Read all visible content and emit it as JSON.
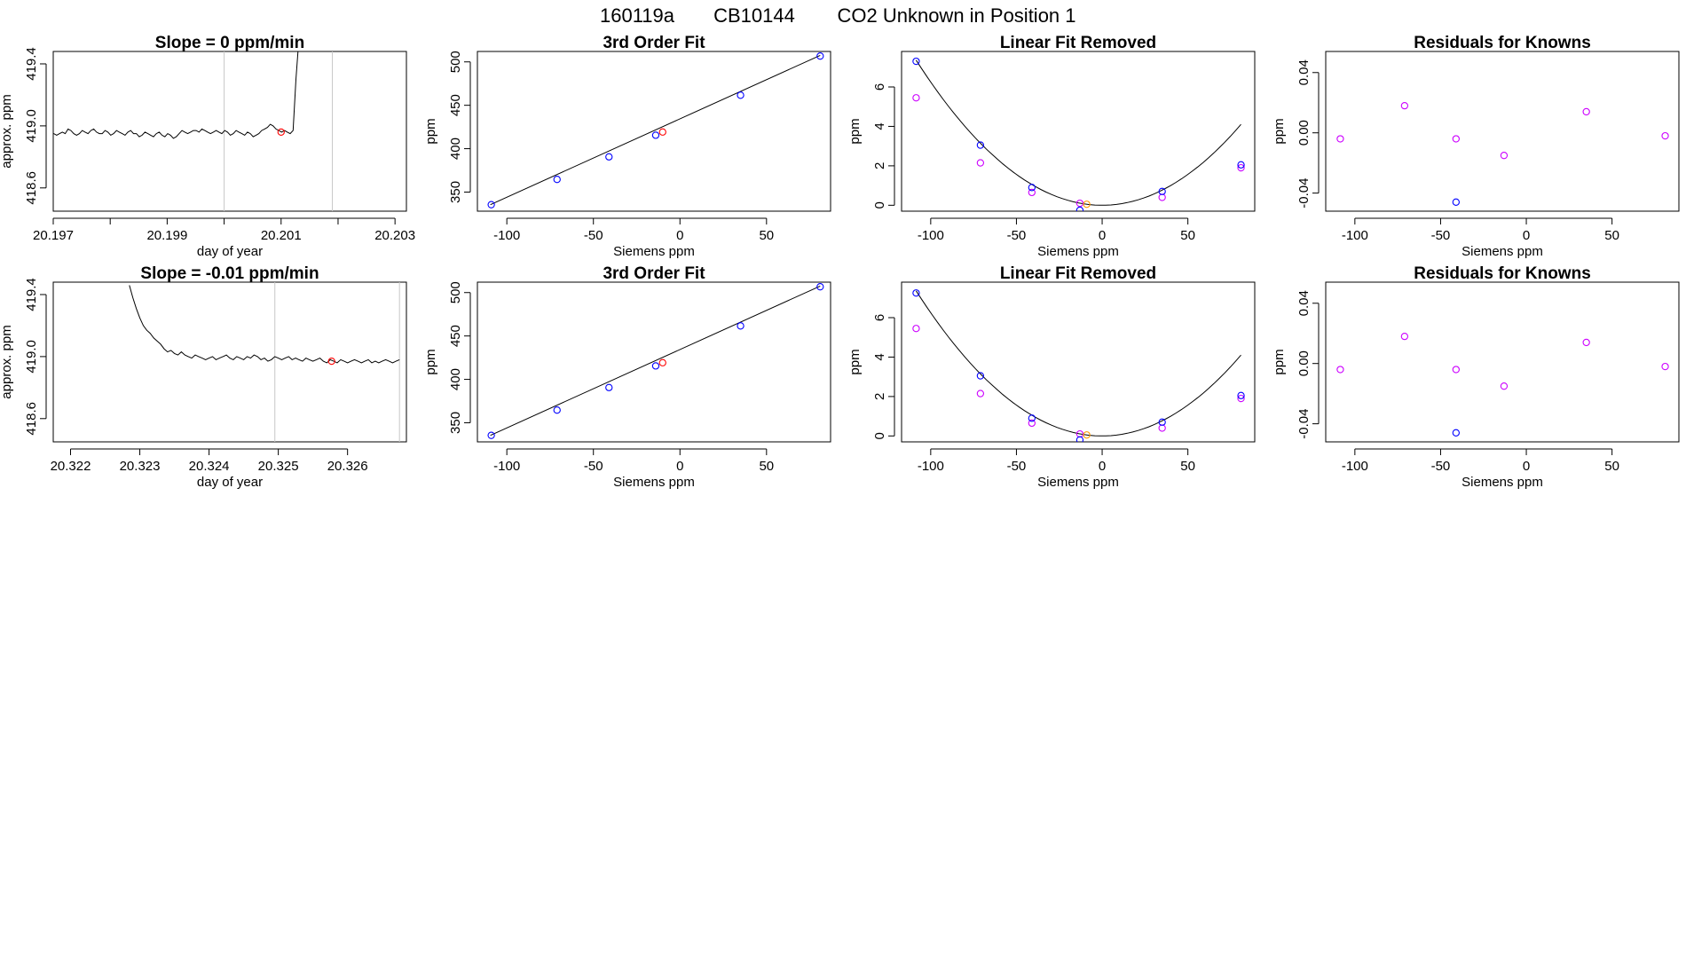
{
  "page": {
    "title_id": "160119a",
    "title_tank": "CB10144",
    "title_desc": "CO2 Unknown in Position  1"
  },
  "colors": {
    "known": "#0000ff",
    "unknown": "#ff0000",
    "residual": "#cc00ff",
    "unknown_removed": "#ff9900",
    "vline": "#c8c8c8"
  },
  "chart_data": [
    {
      "id": "row1-timeseries",
      "type": "line",
      "title": "Slope =  0  ppm/min",
      "xlabel": "day of year",
      "ylabel": "approx. ppm",
      "xlim": [
        20.197,
        20.2032
      ],
      "ylim": [
        418.45,
        419.48
      ],
      "xticks": [
        20.197,
        20.198,
        20.199,
        20.2,
        20.201,
        20.202,
        20.203
      ],
      "xtick_labels": [
        "20.197",
        "",
        "20.199",
        "",
        "20.201",
        "",
        "20.203"
      ],
      "yticks": [
        418.6,
        419.0,
        419.4
      ],
      "ytick_labels": [
        "418.6",
        "419.0",
        "419.4"
      ],
      "trace": {
        "x_start": 20.19696,
        "x_step": 5e-05,
        "values": [
          418.95,
          418.95,
          418.94,
          418.95,
          418.96,
          418.95,
          418.98,
          418.97,
          418.95,
          418.94,
          418.95,
          418.97,
          418.96,
          418.95,
          418.97,
          418.98,
          418.96,
          418.95,
          418.95,
          418.97,
          418.96,
          418.94,
          418.95,
          418.97,
          418.96,
          418.95,
          418.94,
          418.96,
          418.97,
          418.95,
          418.95,
          418.93,
          418.94,
          418.96,
          418.95,
          418.94,
          418.93,
          418.95,
          418.96,
          418.94,
          418.93,
          418.95,
          418.94,
          418.92,
          418.93,
          418.95,
          418.97,
          418.96,
          418.95,
          418.96,
          418.97,
          418.97,
          418.96,
          418.98,
          418.97,
          418.96,
          418.95,
          418.96,
          418.97,
          418.96,
          418.95,
          418.97,
          418.96,
          418.94,
          418.95,
          418.97,
          418.96,
          418.95,
          418.94,
          418.96,
          418.95,
          418.93,
          418.94,
          418.95,
          418.97,
          418.98,
          418.99,
          419.01,
          419.0,
          418.98,
          418.97,
          418.96,
          418.97,
          418.96,
          418.95,
          418.97,
          419.3,
          419.55
        ]
      },
      "vlines": [
        20.2,
        20.2019
      ],
      "unknown_point": [
        20.201,
        418.96
      ]
    },
    {
      "id": "row1-fit",
      "type": "scatter",
      "title": "3rd Order Fit",
      "xlabel": "Siemens ppm",
      "ylabel": "ppm",
      "xlim": [
        -117,
        87
      ],
      "ylim": [
        328,
        512
      ],
      "xticks": [
        -100,
        -50,
        0,
        50
      ],
      "xtick_labels": [
        "-100",
        "-50",
        "0",
        "50"
      ],
      "yticks": [
        350,
        400,
        450,
        500
      ],
      "ytick_labels": [
        "350",
        "400",
        "450",
        "500"
      ],
      "curve": [
        [
          -109.5,
          335.5
        ],
        [
          81,
          507.5
        ]
      ],
      "known_x": [
        -109,
        -71,
        -41,
        -14,
        35,
        81
      ],
      "known_y": [
        335.5,
        364.6,
        390.6,
        415.5,
        461.6,
        506.7
      ],
      "unknown_point": [
        -10,
        419.2
      ]
    },
    {
      "id": "row1-linear-removed",
      "type": "scatter",
      "title": "Linear Fit Removed",
      "xlabel": "Siemens ppm",
      "ylabel": "ppm",
      "xlim": [
        -117,
        89
      ],
      "ylim": [
        -0.3,
        7.8
      ],
      "xticks": [
        -100,
        -50,
        0,
        50
      ],
      "xtick_labels": [
        "-100",
        "-50",
        "0",
        "50"
      ],
      "yticks": [
        0,
        2,
        4,
        6
      ],
      "ytick_labels": [
        "0",
        "2",
        "4",
        "6"
      ],
      "curve_coef": 0.000625,
      "curve_range": [
        -108.5,
        81
      ],
      "known_x": [
        -108.5,
        -71,
        -41,
        -13,
        35,
        81
      ],
      "known_y": [
        7.3,
        3.05,
        0.9,
        -0.25,
        0.7,
        2.05
      ],
      "residual_x": [
        -108.5,
        -71,
        -41,
        -13,
        35,
        81
      ],
      "residual_y": [
        5.45,
        2.15,
        0.65,
        0.1,
        0.4,
        1.9
      ],
      "unknown_point": [
        -9,
        0.05
      ]
    },
    {
      "id": "row1-residuals",
      "type": "scatter",
      "title": "Residuals for Knowns",
      "xlabel": "Siemens ppm",
      "ylabel": "ppm",
      "xlim": [
        -117,
        89
      ],
      "ylim": [
        -0.052,
        0.054
      ],
      "xticks": [
        -100,
        -50,
        0,
        50
      ],
      "xtick_labels": [
        "-100",
        "-50",
        "0",
        "50"
      ],
      "yticks": [
        -0.04,
        0.0,
        0.04
      ],
      "ytick_labels": [
        "-0.04",
        "0.00",
        "0.04"
      ],
      "residual_x": [
        -108.5,
        -71,
        -41,
        -13,
        35,
        81
      ],
      "residual_y": [
        -0.004,
        0.018,
        -0.004,
        -0.015,
        0.014,
        -0.002
      ],
      "known_x": [
        -41
      ],
      "known_y": [
        -0.046
      ]
    },
    {
      "id": "row2-timeseries",
      "type": "line",
      "title": "Slope =  -0.01  ppm/min",
      "xlabel": "day of year",
      "ylabel": "approx. ppm",
      "xlim": [
        20.32175,
        20.32685
      ],
      "ylim": [
        418.45,
        419.48
      ],
      "xticks": [
        20.322,
        20.323,
        20.324,
        20.325,
        20.326
      ],
      "xtick_labels": [
        "20.322",
        "20.323",
        "20.324",
        "20.325",
        "20.326"
      ],
      "yticks": [
        418.6,
        419.0,
        419.4
      ],
      "ytick_labels": [
        "418.6",
        "419.0",
        "419.4"
      ],
      "trace": {
        "x_start": 20.32285,
        "x_step": 5e-05,
        "values": [
          419.46,
          419.38,
          419.31,
          419.25,
          419.2,
          419.17,
          419.15,
          419.12,
          419.1,
          419.08,
          419.05,
          419.03,
          419.04,
          419.02,
          419.01,
          419.03,
          419.01,
          419.0,
          418.99,
          419.01,
          419.0,
          418.99,
          418.98,
          418.99,
          419.0,
          418.98,
          418.99,
          419.0,
          419.01,
          418.99,
          418.98,
          419.0,
          418.99,
          418.98,
          419.0,
          418.99,
          419.01,
          419.0,
          418.98,
          418.99,
          418.97,
          418.98,
          419.0,
          418.99,
          418.98,
          418.99,
          419.0,
          418.98,
          418.99,
          418.98,
          418.97,
          418.99,
          418.98,
          418.97,
          418.98,
          418.99,
          418.97,
          418.96,
          418.98,
          418.97,
          418.96,
          418.98,
          418.97,
          418.96,
          418.97,
          418.98,
          418.97,
          418.96,
          418.97,
          418.98,
          418.96,
          418.97,
          418.96,
          418.97,
          418.98,
          418.97,
          418.96,
          418.97,
          418.98
        ]
      },
      "vlines": [
        20.32495,
        20.32675
      ],
      "unknown_point": [
        20.32577,
        418.97
      ]
    },
    {
      "id": "row2-fit",
      "type": "scatter",
      "title": "3rd Order Fit",
      "xlabel": "Siemens ppm",
      "ylabel": "ppm",
      "xlim": [
        -117,
        87
      ],
      "ylim": [
        328,
        512
      ],
      "xticks": [
        -100,
        -50,
        0,
        50
      ],
      "xtick_labels": [
        "-100",
        "-50",
        "0",
        "50"
      ],
      "yticks": [
        350,
        400,
        450,
        500
      ],
      "ytick_labels": [
        "350",
        "400",
        "450",
        "500"
      ],
      "curve": [
        [
          -109.5,
          335.5
        ],
        [
          81,
          507.5
        ]
      ],
      "known_x": [
        -109,
        -71,
        -41,
        -14,
        35,
        81
      ],
      "known_y": [
        335.5,
        364.6,
        390.6,
        415.5,
        461.6,
        506.7
      ],
      "unknown_point": [
        -10,
        419.2
      ]
    },
    {
      "id": "row2-linear-removed",
      "type": "scatter",
      "title": "Linear Fit Removed",
      "xlabel": "Siemens ppm",
      "ylabel": "ppm",
      "xlim": [
        -117,
        89
      ],
      "ylim": [
        -0.3,
        7.8
      ],
      "xticks": [
        -100,
        -50,
        0,
        50
      ],
      "xtick_labels": [
        "-100",
        "-50",
        "0",
        "50"
      ],
      "yticks": [
        0,
        2,
        4,
        6
      ],
      "ytick_labels": [
        "0",
        "2",
        "4",
        "6"
      ],
      "curve_coef": 0.000625,
      "curve_range": [
        -108.5,
        81
      ],
      "known_x": [
        -108.5,
        -71,
        -41,
        -13,
        35,
        81
      ],
      "known_y": [
        7.25,
        3.05,
        0.9,
        -0.2,
        0.7,
        2.05
      ],
      "residual_x": [
        -108.5,
        -71,
        -41,
        -13,
        35,
        81
      ],
      "residual_y": [
        5.45,
        2.15,
        0.65,
        0.1,
        0.4,
        1.9
      ],
      "unknown_point": [
        -9,
        0.05
      ]
    },
    {
      "id": "row2-residuals",
      "type": "scatter",
      "title": "Residuals for Knowns",
      "xlabel": "Siemens ppm",
      "ylabel": "ppm",
      "xlim": [
        -117,
        89
      ],
      "ylim": [
        -0.052,
        0.054
      ],
      "xticks": [
        -100,
        -50,
        0,
        50
      ],
      "xtick_labels": [
        "-100",
        "-50",
        "0",
        "50"
      ],
      "yticks": [
        -0.04,
        0.0,
        0.04
      ],
      "ytick_labels": [
        "-0.04",
        "0.00",
        "0.04"
      ],
      "residual_x": [
        -108.5,
        -71,
        -41,
        -13,
        35,
        81
      ],
      "residual_y": [
        -0.004,
        0.018,
        -0.004,
        -0.015,
        0.014,
        -0.002
      ],
      "known_x": [
        -41
      ],
      "known_y": [
        -0.046
      ]
    }
  ]
}
